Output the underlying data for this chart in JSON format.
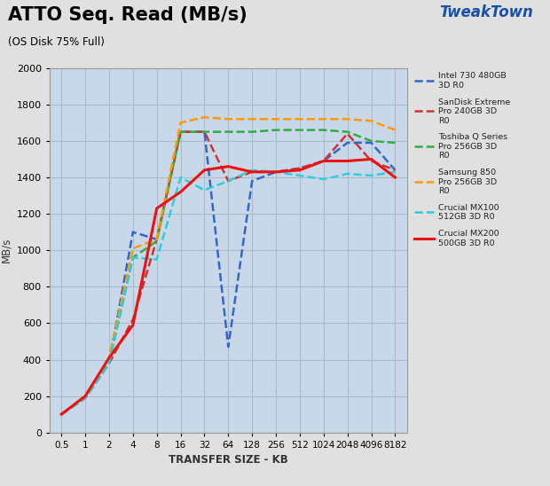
{
  "title": "ATTO Seq. Read (MB/s)",
  "subtitle": "(OS Disk 75% Full)",
  "xlabel": "TRANSFER SIZE - KB",
  "ylabel": "MB/s",
  "x_labels": [
    "0.5",
    "1",
    "2",
    "4",
    "8",
    "16",
    "32",
    "64",
    "128",
    "256",
    "512",
    "1024",
    "2048",
    "4096",
    "8182"
  ],
  "x_values": [
    0,
    1,
    2,
    3,
    4,
    5,
    6,
    7,
    8,
    9,
    10,
    11,
    12,
    13,
    14
  ],
  "ylim": [
    0,
    2000
  ],
  "yticks": [
    0,
    200,
    400,
    600,
    800,
    1000,
    1200,
    1400,
    1600,
    1800,
    2000
  ],
  "series": [
    {
      "label": "Intel 730 480GB\n3D R0",
      "color": "#3366CC",
      "dashed": true,
      "linewidth": 1.8,
      "values": [
        100,
        190,
        380,
        1100,
        1060,
        1650,
        1650,
        470,
        1380,
        1430,
        1450,
        1490,
        1590,
        1590,
        1440
      ]
    },
    {
      "label": "SanDisk Extreme\nPro 240GB 3D\nR0",
      "color": "#CC3333",
      "dashed": true,
      "linewidth": 1.8,
      "values": [
        100,
        190,
        380,
        620,
        1060,
        1650,
        1650,
        1380,
        1430,
        1430,
        1450,
        1490,
        1640,
        1490,
        1440
      ]
    },
    {
      "label": "Toshiba Q Series\nPro 256GB 3D\nR0",
      "color": "#33AA44",
      "dashed": true,
      "linewidth": 1.8,
      "values": [
        100,
        190,
        380,
        960,
        1050,
        1650,
        1650,
        1650,
        1650,
        1660,
        1660,
        1660,
        1650,
        1600,
        1590
      ]
    },
    {
      "label": "Samsung 850\nPro 256GB 3D\nR0",
      "color": "#FF9900",
      "dashed": true,
      "linewidth": 1.8,
      "values": [
        100,
        200,
        410,
        1010,
        1060,
        1700,
        1730,
        1720,
        1720,
        1720,
        1720,
        1720,
        1720,
        1710,
        1660
      ]
    },
    {
      "label": "Crucial MX100\n512GB 3D R0",
      "color": "#33CCDD",
      "dashed": true,
      "linewidth": 1.8,
      "values": [
        100,
        190,
        380,
        960,
        950,
        1400,
        1330,
        1380,
        1440,
        1430,
        1410,
        1390,
        1420,
        1410,
        1430
      ]
    },
    {
      "label": "Crucial MX200\n500GB 3D R0",
      "color": "#EE1111",
      "dashed": false,
      "linewidth": 2.2,
      "values": [
        100,
        200,
        410,
        590,
        1230,
        1320,
        1440,
        1460,
        1430,
        1430,
        1440,
        1490,
        1490,
        1500,
        1400
      ]
    }
  ],
  "bg_color": "#C8D8E8",
  "grid_color": "#AABBCC",
  "outer_bg": "#E0E0E0",
  "title_color": "#000000"
}
